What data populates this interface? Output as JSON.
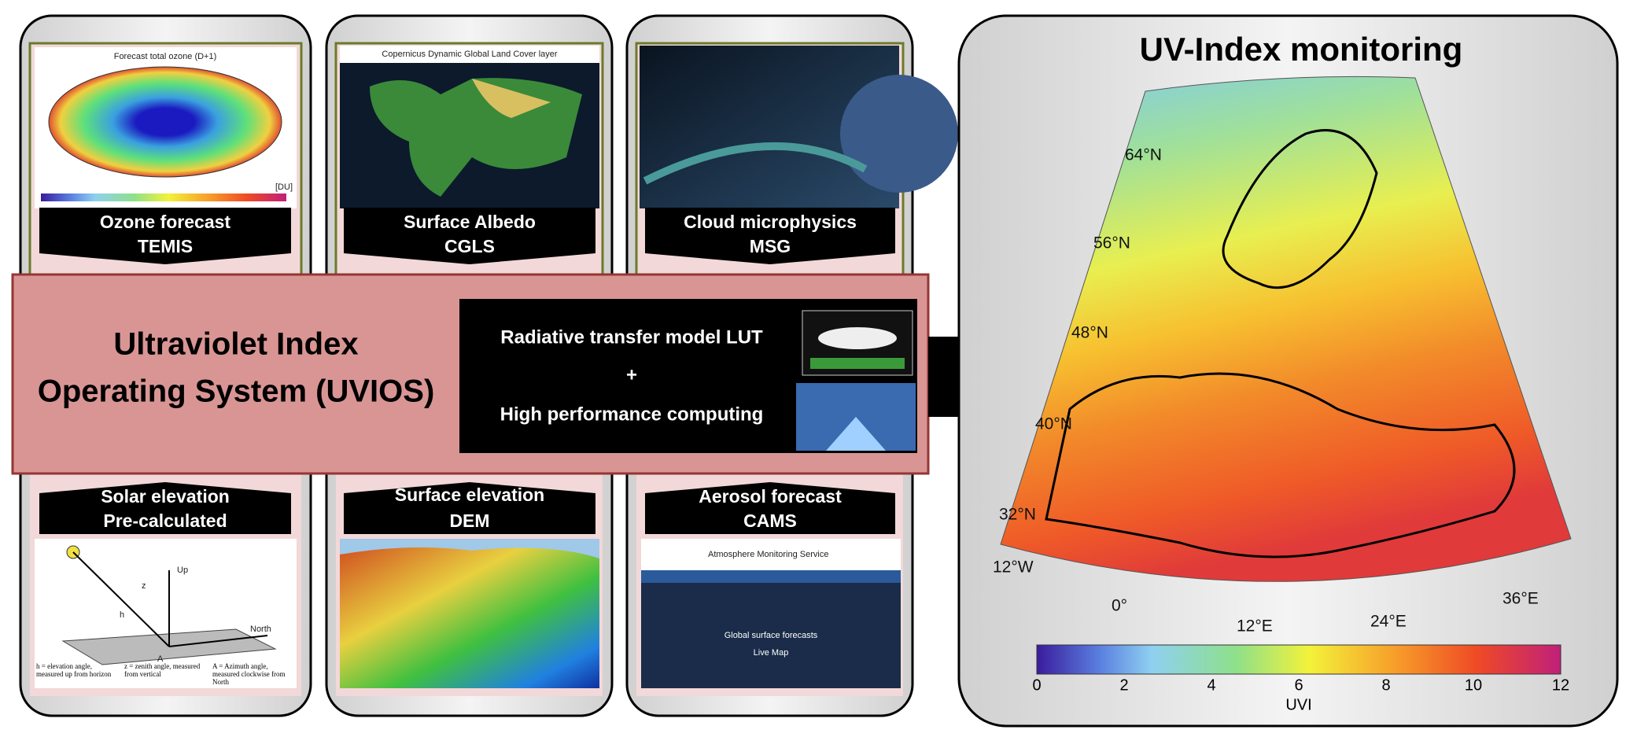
{
  "panels": [
    {
      "title": "Ozone forecast",
      "source": "TEMIS",
      "image_caption": "Forecast total ozone (D+1)",
      "image_unit": "[DU]"
    },
    {
      "title": "Surface Albedo",
      "source": "CGLS",
      "image_caption": "Copernicus Dynamic Global Land Cover layer"
    },
    {
      "title": "Cloud microphysics",
      "source": "MSG"
    },
    {
      "title": "Solar elevation",
      "source": "Pre-calculated",
      "diagram_labels": [
        "Up",
        "North",
        "h",
        "z",
        "A"
      ],
      "captions": [
        "h = elevation angle, measured up from horizon",
        "z = zenith angle, measured from vertical",
        "A = Azimuth angle, measured clockwise from North"
      ]
    },
    {
      "title": "Surface elevation",
      "source": "DEM"
    },
    {
      "title": "Aerosol forecast",
      "source": "CAMS",
      "image_texts": [
        "Atmosphere Monitoring Service",
        "Global surface forecasts",
        "Live Map"
      ]
    }
  ],
  "system": {
    "title_lines": [
      "Ultraviolet Index",
      "Operating System (UVIOS)"
    ],
    "components": [
      "Radiative transfer model LUT",
      "+",
      "High performance computing"
    ]
  },
  "map": {
    "title": "UV-Index monitoring",
    "lat_labels": [
      "64°N",
      "56°N",
      "48°N",
      "40°N",
      "32°N"
    ],
    "lon_labels": [
      "12°W",
      "0°",
      "12°E",
      "24°E",
      "36°E"
    ],
    "colorbar_ticks": [
      0,
      2,
      4,
      6,
      8,
      10,
      12
    ],
    "colorbar_label": "UVI"
  }
}
